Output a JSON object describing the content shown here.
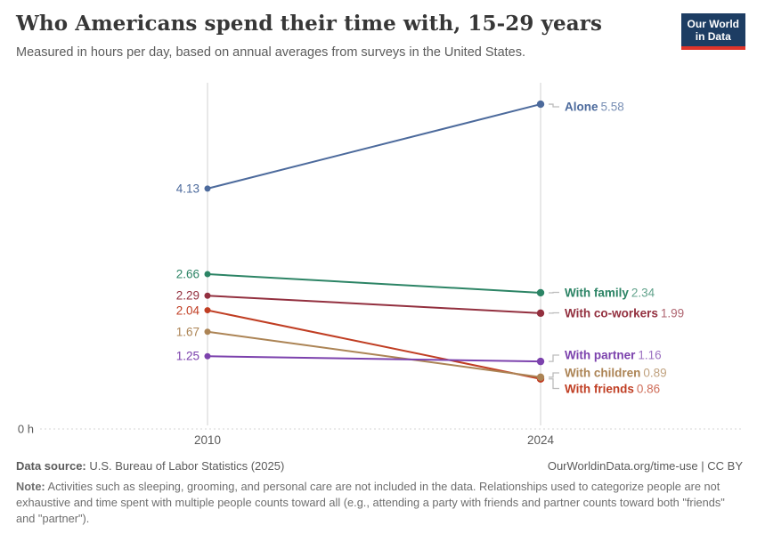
{
  "chart_data": {
    "type": "line",
    "title": "Who Americans spend their time with, 15-29 years",
    "subtitle": "Measured in hours per day, based on annual averages from surveys in the United States.",
    "unit": "hours per day",
    "x": [
      "2010",
      "2024"
    ],
    "y_zero_label": "0 h",
    "ylim": [
      0,
      6
    ],
    "grid": "vertical lines at each year, dotted zero baseline",
    "legend_position": "labels at line ends",
    "series": [
      {
        "name": "Alone",
        "values": [
          4.13,
          5.58
        ],
        "color": "#4C6A9C"
      },
      {
        "name": "With family",
        "values": [
          2.66,
          2.34
        ],
        "color": "#2C8465"
      },
      {
        "name": "With co-workers",
        "values": [
          2.29,
          1.99
        ],
        "color": "#93303F"
      },
      {
        "name": "With friends",
        "values": [
          2.04,
          0.86
        ],
        "color": "#C03E23"
      },
      {
        "name": "With children",
        "values": [
          1.67,
          0.89
        ],
        "color": "#AC8455"
      },
      {
        "name": "With partner",
        "values": [
          1.25,
          1.16
        ],
        "color": "#7C42AD"
      }
    ]
  },
  "logo": {
    "line1": "Our World",
    "line2": "in Data",
    "bg_color": "#1D3D63",
    "accent_color": "#E0342A"
  },
  "footer": {
    "source_label": "Data source:",
    "source_text": " U.S. Bureau of Labor Statistics (2025)",
    "link": "OurWorldinData.org/time-use | CC BY",
    "note_label": "Note:",
    "note_text": " Activities such as sleeping, grooming, and personal care are not included in the data. Relationships used to categorize people are not exhaustive and time spent with multiple people counts toward all (e.g., attending a party with friends and partner counts toward both \"friends\" and \"partner\")."
  }
}
